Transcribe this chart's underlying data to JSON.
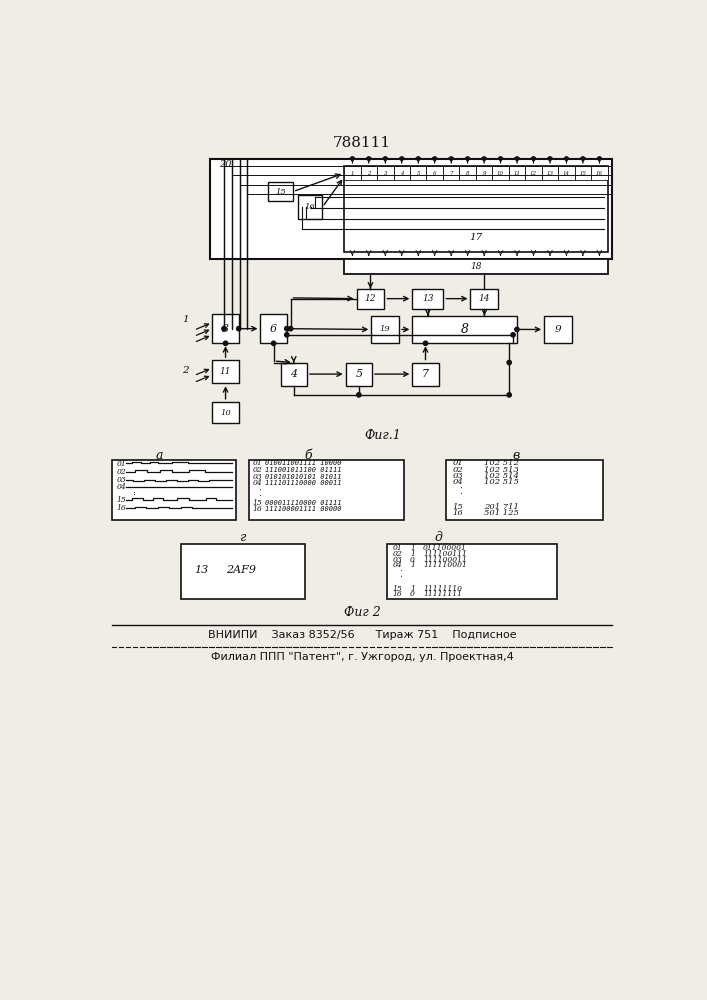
{
  "title": "788111",
  "fig1_label": "Фиг.1",
  "fig2_label": "Фиг 2",
  "bottom_text1": "ВНИИПИ    Заказ 8352/56      Тираж 751    Подписное",
  "bottom_text2": "Филиал ППП \"Патент\", г. Ужгород, ул. Проектная,4",
  "bg_color": "#f0ede6",
  "line_color": "#111111",
  "cell_labels": [
    "1",
    "2",
    "3",
    "4",
    "5",
    "6",
    "7",
    "8",
    "9",
    "10",
    "11",
    "12",
    "13",
    "14",
    "15",
    "16"
  ],
  "b_lines": [
    "01  010011001111 10000",
    "02  111001011100 01111",
    "03  010101010101 01011",
    "04  111101110000 00011",
    "15  000011110000 01111",
    "16  111100001111 00000"
  ],
  "v_lines": [
    [
      "01",
      "102 512"
    ],
    [
      "02",
      "102 513"
    ],
    [
      "03",
      "102 514"
    ],
    [
      "04",
      "102 515"
    ],
    [
      "15",
      "201 711"
    ],
    [
      "16",
      "501 125"
    ]
  ],
  "d_lines": [
    [
      "01",
      "1",
      "011100001"
    ],
    [
      "02",
      "1",
      "111100111"
    ],
    [
      "03",
      "0",
      "111100011"
    ],
    [
      "04",
      "1",
      "111110001"
    ],
    [
      "15",
      "1",
      "11111110"
    ],
    [
      "16",
      "0",
      "11111111"
    ]
  ]
}
